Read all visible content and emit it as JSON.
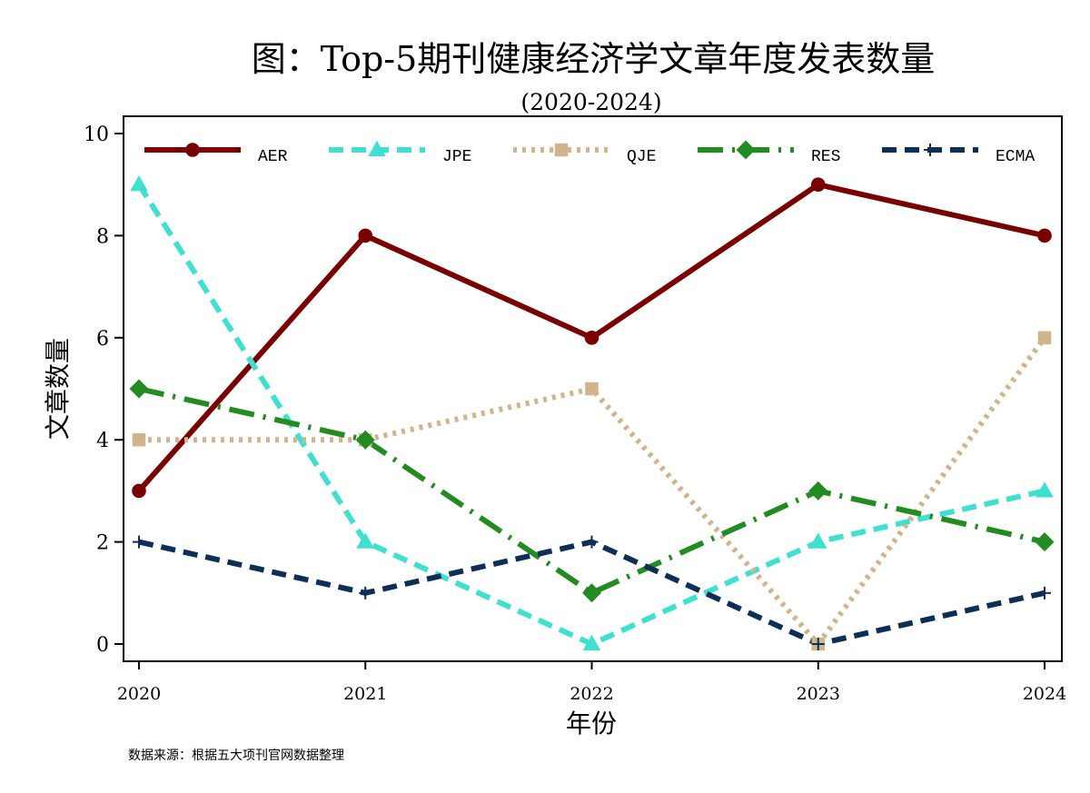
{
  "chart_data": {
    "type": "line",
    "title": "图：Top-5期刊健康经济学文章年度发表数量",
    "subtitle": "(2020-2024)",
    "xlabel": "年份",
    "ylabel": "文章数量",
    "note": "数据来源：根据五大项刊官网数据整理",
    "x": [
      2020,
      2021,
      2022,
      2023,
      2024
    ],
    "x_tick_labels": [
      "2020",
      "2021",
      "2022",
      "2023",
      "2024"
    ],
    "ylim": [
      0,
      10
    ],
    "y_ticks": [
      0,
      2,
      4,
      6,
      8,
      10
    ],
    "y_tick_labels": [
      "0",
      "2",
      "4",
      "6",
      "8",
      "10"
    ],
    "grid": false,
    "legend_position": "top, inside plot, single row",
    "series": [
      {
        "name": "AER",
        "values": [
          3,
          8,
          6,
          9,
          8
        ],
        "color": "#7a0000",
        "line_style": "solid",
        "marker": "circle"
      },
      {
        "name": "JPE",
        "values": [
          9,
          2,
          0,
          2,
          3
        ],
        "color": "#40e0d0",
        "line_style": "dash",
        "marker": "triangle"
      },
      {
        "name": "QJE",
        "values": [
          4,
          4,
          5,
          0,
          6
        ],
        "color": "#d2b48c",
        "line_style": "dot",
        "marker": "square"
      },
      {
        "name": "RES",
        "values": [
          5,
          4,
          1,
          3,
          2
        ],
        "color": "#228b22",
        "line_style": "dash-dot",
        "marker": "diamond"
      },
      {
        "name": "ECMA",
        "values": [
          2,
          1,
          2,
          0,
          1
        ],
        "color": "#0d2f57",
        "line_style": "dash",
        "marker": "plus"
      }
    ]
  }
}
